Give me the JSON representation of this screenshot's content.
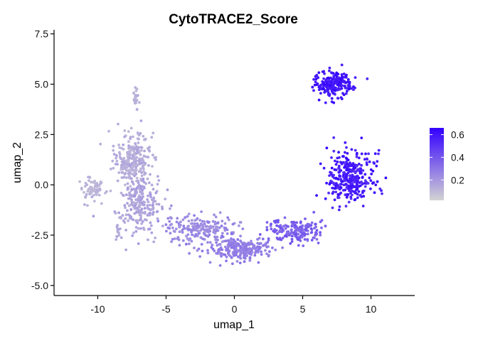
{
  "chart_data": {
    "type": "scatter",
    "title": "CytoTRACE2_Score",
    "xlabel": "umap_1",
    "ylabel": "umap_2",
    "xlim": [
      -13.2,
      13.2
    ],
    "ylim": [
      -5.5,
      7.7
    ],
    "x_ticks": [
      -10,
      -5,
      0,
      5,
      10
    ],
    "x_tick_labels": [
      "-10",
      "-5",
      "0",
      "5",
      "10"
    ],
    "y_ticks": [
      7.5,
      5.0,
      2.5,
      0.0,
      -2.5,
      -5.0
    ],
    "y_tick_labels": [
      "7.5",
      "5.0",
      "2.5",
      "0.0",
      "-2.5",
      "-5.0"
    ],
    "grid": false,
    "legend": {
      "placement": "right",
      "title": "",
      "ticks": [
        0.6,
        0.4,
        0.2
      ],
      "tick_labels": [
        "0.6",
        "0.4",
        "0.2"
      ],
      "range": [
        0.02,
        0.66
      ],
      "color_low": "#d3d3d3",
      "color_high": "#3300ff"
    },
    "clusters": [
      {
        "id": "left-upper-lobe",
        "center": [
          -7.5,
          1.2
        ],
        "spread": [
          1.2,
          1.3
        ],
        "score_range": [
          0.1,
          0.17
        ],
        "approx_points": 260
      },
      {
        "id": "left-spike",
        "center": [
          -7.2,
          4.2
        ],
        "spread": [
          0.25,
          0.6
        ],
        "score_range": [
          0.1,
          0.15
        ],
        "approx_points": 25
      },
      {
        "id": "left-tail",
        "center": [
          -10.5,
          -0.2
        ],
        "spread": [
          0.8,
          0.5
        ],
        "score_range": [
          0.09,
          0.14
        ],
        "approx_points": 70
      },
      {
        "id": "left-lower-mass",
        "center": [
          -7.0,
          -1.0
        ],
        "spread": [
          1.5,
          1.2
        ],
        "score_range": [
          0.12,
          0.2
        ],
        "approx_points": 220
      },
      {
        "id": "left-bottom-spike",
        "center": [
          -8.5,
          -2.3
        ],
        "spread": [
          0.2,
          0.4
        ],
        "score_range": [
          0.12,
          0.16
        ],
        "approx_points": 15
      },
      {
        "id": "middle-band",
        "center": [
          -2.5,
          -2.2
        ],
        "spread": [
          2.5,
          0.6
        ],
        "score_range": [
          0.2,
          0.28
        ],
        "approx_points": 200
      },
      {
        "id": "bottom-arc",
        "center": [
          0.5,
          -3.2
        ],
        "spread": [
          2.2,
          0.5
        ],
        "score_range": [
          0.24,
          0.32
        ],
        "approx_points": 230
      },
      {
        "id": "right-ramp",
        "center": [
          4.5,
          -2.3
        ],
        "spread": [
          1.8,
          0.5
        ],
        "score_range": [
          0.32,
          0.42
        ],
        "approx_points": 170
      },
      {
        "id": "right-arc-cluster",
        "center": [
          8.5,
          0.3
        ],
        "spread": [
          1.5,
          1.3
        ],
        "score_range": [
          0.5,
          0.66
        ],
        "approx_points": 330
      },
      {
        "id": "top-right-cluster",
        "center": [
          7.2,
          5.0
        ],
        "spread": [
          1.2,
          0.6
        ],
        "score_range": [
          0.55,
          0.66
        ],
        "approx_points": 200
      }
    ]
  }
}
